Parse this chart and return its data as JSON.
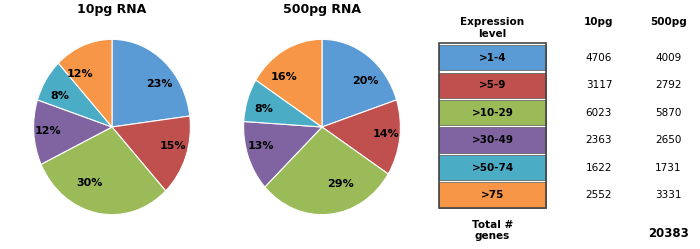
{
  "pie1_title": "10pg RNA",
  "pie2_title": "500pg RNA",
  "pie_colors": [
    "#5b9bd5",
    "#c0504d",
    "#9bbb59",
    "#8064a2",
    "#4bacc6",
    "#f79646"
  ],
  "pie1_sizes": [
    23,
    15,
    30,
    12,
    8,
    12
  ],
  "pie2_sizes": [
    20,
    14,
    29,
    13,
    8,
    16
  ],
  "pie1_labels": [
    "23%",
    "15%",
    "30%",
    "12%",
    "8%",
    "12%"
  ],
  "pie2_labels": [
    "20%",
    "14%",
    "29%",
    "13%",
    "8%",
    "16%"
  ],
  "legend_labels": [
    ">1-4",
    ">5-9",
    ">10-29",
    ">30-49",
    ">50-74",
    ">75"
  ],
  "legend_colors": [
    "#5b9bd5",
    "#c0504d",
    "#9bbb59",
    "#8064a2",
    "#4bacc6",
    "#f79646"
  ],
  "values_10pg": [
    "4706",
    "3117",
    "6023",
    "2363",
    "1622",
    "2552"
  ],
  "values_500pg": [
    "4009",
    "2792",
    "5870",
    "2650",
    "1731",
    "3331"
  ],
  "total_500pg": "20383",
  "title_fontsize": 9,
  "label_fontsize": 8
}
